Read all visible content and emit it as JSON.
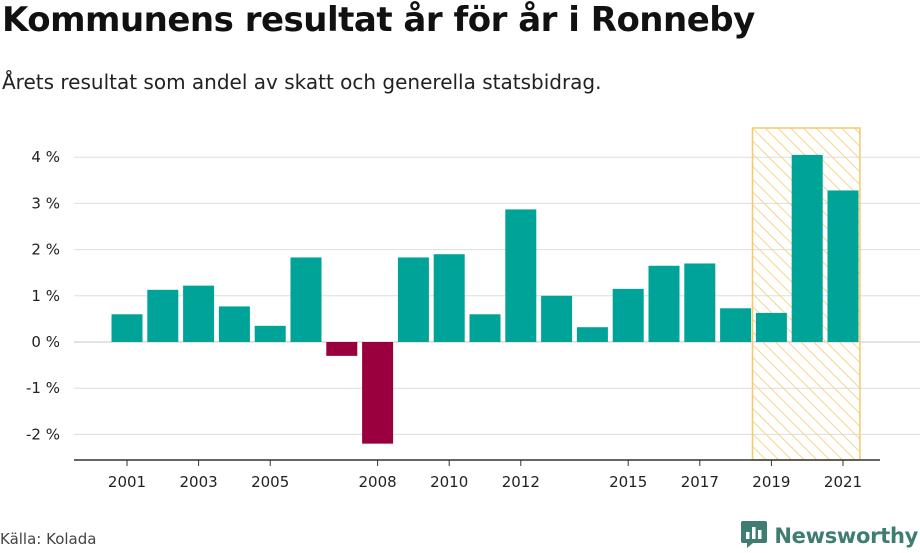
{
  "header": {
    "title": "Kommunens resultat år för år i Ronneby",
    "subtitle": "Årets resultat som andel av skatt och generella statsbidrag."
  },
  "footer": {
    "source": "Källa: Kolada",
    "brand": "Newsworthy"
  },
  "colors": {
    "positive": "#00a398",
    "negative": "#99003d",
    "highlight_fill": "#fff3d6",
    "highlight_stroke": "#f5c96a",
    "grid": "#dddddd",
    "brand": "#3f7d72"
  },
  "chart_data": {
    "type": "bar",
    "title": "Kommunens resultat år för år i Ronneby",
    "subtitle": "Årets resultat som andel av skatt och generella statsbidrag.",
    "xlabel": "",
    "ylabel": "",
    "categories": [
      2001,
      2002,
      2003,
      2004,
      2005,
      2006,
      2007,
      2008,
      2009,
      2010,
      2011,
      2012,
      2013,
      2014,
      2015,
      2016,
      2017,
      2018,
      2019,
      2020,
      2021
    ],
    "values": [
      0.6,
      1.13,
      1.22,
      0.77,
      0.35,
      1.83,
      -0.3,
      -2.2,
      1.83,
      1.9,
      0.6,
      2.87,
      1.0,
      0.32,
      1.15,
      1.65,
      1.7,
      0.73,
      0.63,
      4.05,
      3.28
    ],
    "x_tick_labels": [
      "2001",
      "2003",
      "2005",
      "2008",
      "2010",
      "2012",
      "2015",
      "2017",
      "2019",
      "2021"
    ],
    "y_ticks": [
      -2,
      -1,
      0,
      1,
      2,
      3,
      4
    ],
    "y_tick_labels": [
      "-2 %",
      "-1 %",
      "0 %",
      "1 %",
      "2 %",
      "3 %",
      "4 %"
    ],
    "ylim": [
      -2.5,
      4.6
    ],
    "grid": true,
    "highlight_range": [
      2019,
      2021
    ]
  }
}
